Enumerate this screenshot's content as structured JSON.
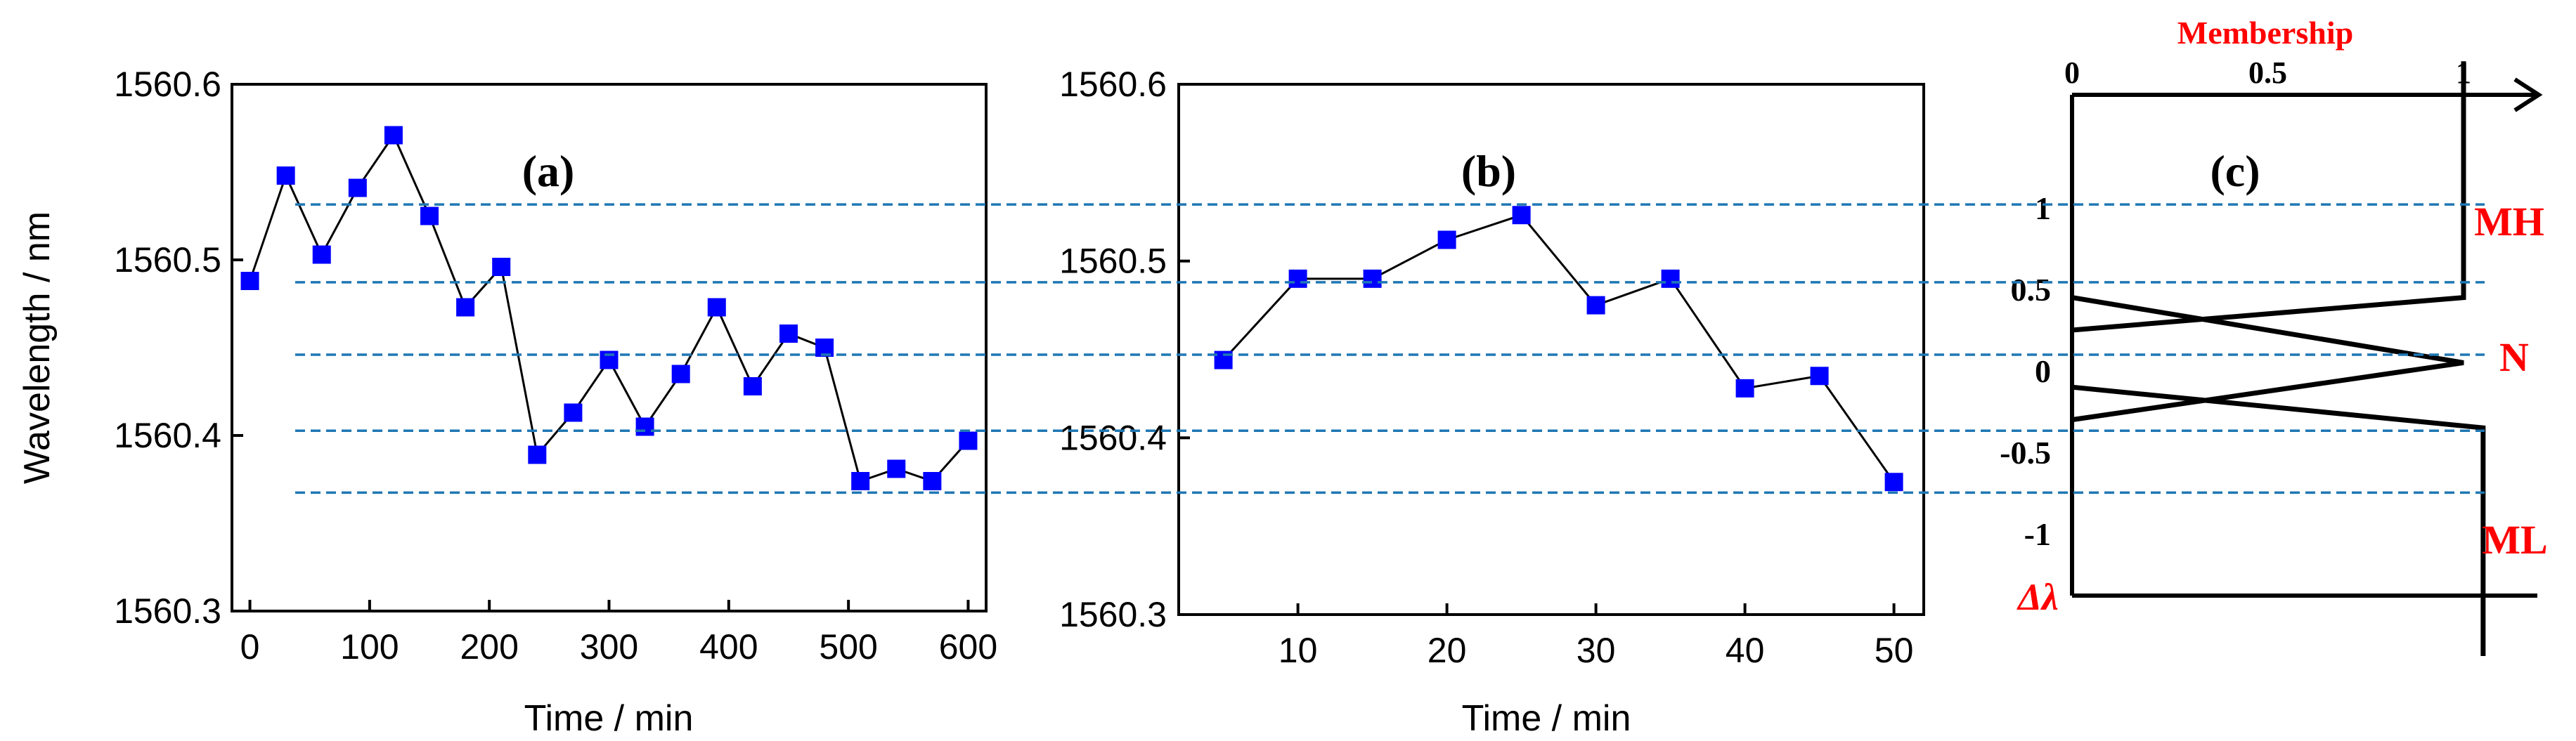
{
  "chart_data": [
    {
      "type": "line",
      "panel_label": "(a)",
      "xlabel": "Time / min",
      "ylabel": "Wavelength / nm",
      "xlim": [
        -15,
        615
      ],
      "ylim": [
        1560.3,
        1560.6
      ],
      "x_ticks": [
        0,
        100,
        200,
        300,
        400,
        500,
        600
      ],
      "y_ticks": [
        "1560.3",
        "1560.4",
        "1560.5",
        "1560.6"
      ],
      "series": [
        {
          "name": "wavelength",
          "marker": "square",
          "color": "#0000ff",
          "x": [
            0,
            30,
            60,
            90,
            120,
            150,
            180,
            210,
            240,
            270,
            300,
            330,
            360,
            390,
            420,
            450,
            480,
            510,
            540,
            570,
            600
          ],
          "y": [
            1560.488,
            1560.548,
            1560.503,
            1560.541,
            1560.571,
            1560.525,
            1560.473,
            1560.496,
            1560.389,
            1560.413,
            1560.443,
            1560.405,
            1560.435,
            1560.473,
            1560.428,
            1560.458,
            1560.45,
            1560.374,
            1560.381,
            1560.374,
            1560.397
          ]
        }
      ]
    },
    {
      "type": "line",
      "panel_label": "(b)",
      "xlabel": "Time / min",
      "ylabel": "",
      "xlim": [
        2,
        52
      ],
      "ylim": [
        1560.3,
        1560.6
      ],
      "x_ticks": [
        10,
        20,
        30,
        40,
        50
      ],
      "y_ticks": [
        "1560.3",
        "1560.4",
        "1560.5",
        "1560.6"
      ],
      "series": [
        {
          "name": "wavelength",
          "marker": "square",
          "color": "#0000ff",
          "x": [
            5,
            10,
            15,
            20,
            25,
            30,
            35,
            40,
            45,
            50
          ],
          "y": [
            1560.444,
            1560.49,
            1560.49,
            1560.512,
            1560.526,
            1560.475,
            1560.49,
            1560.428,
            1560.435,
            1560.375
          ]
        }
      ]
    },
    {
      "type": "line",
      "panel_label": "(c)",
      "title": "Membership",
      "membership_ticks": [
        "0",
        "0.5",
        "1"
      ],
      "delta_ticks": [
        {
          "label": "1",
          "v": 1
        },
        {
          "label": "0.5",
          "v": 0.5
        },
        {
          "label": "0",
          "v": 0
        },
        {
          "label": "-0.5",
          "v": -0.5
        },
        {
          "label": "-1",
          "v": -1
        }
      ],
      "axis_label": "Δλ",
      "sets": [
        {
          "name": "MH",
          "points": [
            [
              0,
              0.25
            ],
            [
              1,
              0.45
            ],
            [
              1,
              1.9
            ]
          ]
        },
        {
          "name": "N",
          "points": [
            [
              0,
              0.45
            ],
            [
              1,
              0.05
            ],
            [
              0,
              -0.3
            ]
          ]
        },
        {
          "name": "ML",
          "points": [
            [
              0,
              -0.1
            ],
            [
              1.05,
              -0.35
            ],
            [
              1.05,
              -1.75
            ]
          ]
        }
      ],
      "label_color": "#ff0000"
    }
  ],
  "reference_lines": {
    "color": "#1f77b4",
    "wavelengths": [
      1560.532,
      1560.488,
      1560.447,
      1560.404,
      1560.369
    ]
  }
}
